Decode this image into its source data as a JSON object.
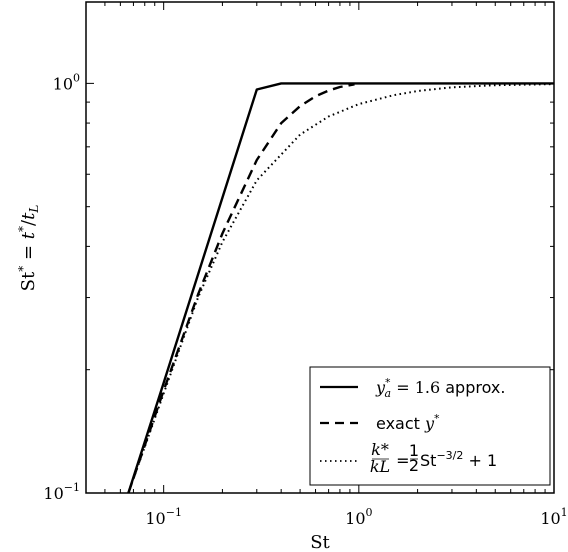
{
  "chart_data": {
    "type": "line",
    "xlabel": "St",
    "ylabel": "St* = t*/tL",
    "xscale": "log",
    "yscale": "log",
    "xlim": [
      0.04,
      10
    ],
    "ylim": [
      0.1,
      1.58
    ],
    "grid": false,
    "legend_position": "bottom-right",
    "x_ticks": [
      {
        "value": 0.1,
        "base": "10",
        "exp": "−1"
      },
      {
        "value": 1,
        "base": "10",
        "exp": "0"
      },
      {
        "value": 10,
        "base": "10",
        "exp": "1"
      }
    ],
    "y_ticks": [
      {
        "value": 0.1,
        "base": "10",
        "exp": "−1"
      },
      {
        "value": 1,
        "base": "10",
        "exp": "0"
      }
    ],
    "series": [
      {
        "name": "y*a = 1.6 approx.",
        "style": "solid",
        "x": [
          0.066,
          0.1,
          0.2,
          0.3,
          0.4,
          0.5,
          0.625,
          1,
          2,
          5,
          10
        ],
        "y": [
          0.1,
          0.1859,
          0.5259,
          0.9659,
          1.0,
          1.0,
          1.0,
          1.0,
          1.0,
          1.0,
          1.0
        ]
      },
      {
        "name": "exact y*",
        "style": "dashed",
        "x": [
          0.066,
          0.1,
          0.15,
          0.2,
          0.3,
          0.4,
          0.5,
          0.6,
          0.7,
          0.8,
          0.95
        ],
        "y": [
          0.1,
          0.178,
          0.305,
          0.43,
          0.65,
          0.8,
          0.88,
          0.93,
          0.96,
          0.98,
          0.995
        ]
      },
      {
        "name": "k*/kL = ½St^(−3/2)+1",
        "style": "dotted",
        "x": [
          0.066,
          0.1,
          0.15,
          0.2,
          0.3,
          0.5,
          0.7,
          1,
          1.5,
          2,
          3,
          5,
          10
        ],
        "y": [
          0.1,
          0.175,
          0.3,
          0.41,
          0.58,
          0.75,
          0.83,
          0.89,
          0.935,
          0.958,
          0.978,
          0.99,
          0.996
        ]
      }
    ]
  },
  "legend": {
    "solid_a": "y",
    "solid_sup": "*",
    "solid_sub": "a",
    "solid_eq": " = 1.6",
    "solid_suffix": " approx.",
    "dashed_prefix": "exact ",
    "dashed_var": "y",
    "dashed_sup": "*",
    "dotted_num": "k*",
    "dotted_den": "kL",
    "dotted_eq": " = ",
    "dotted_half_num": "1",
    "dotted_half_den": "2",
    "dotted_st": "St",
    "dotted_exp": "−3/2",
    "dotted_tail": " + 1"
  }
}
